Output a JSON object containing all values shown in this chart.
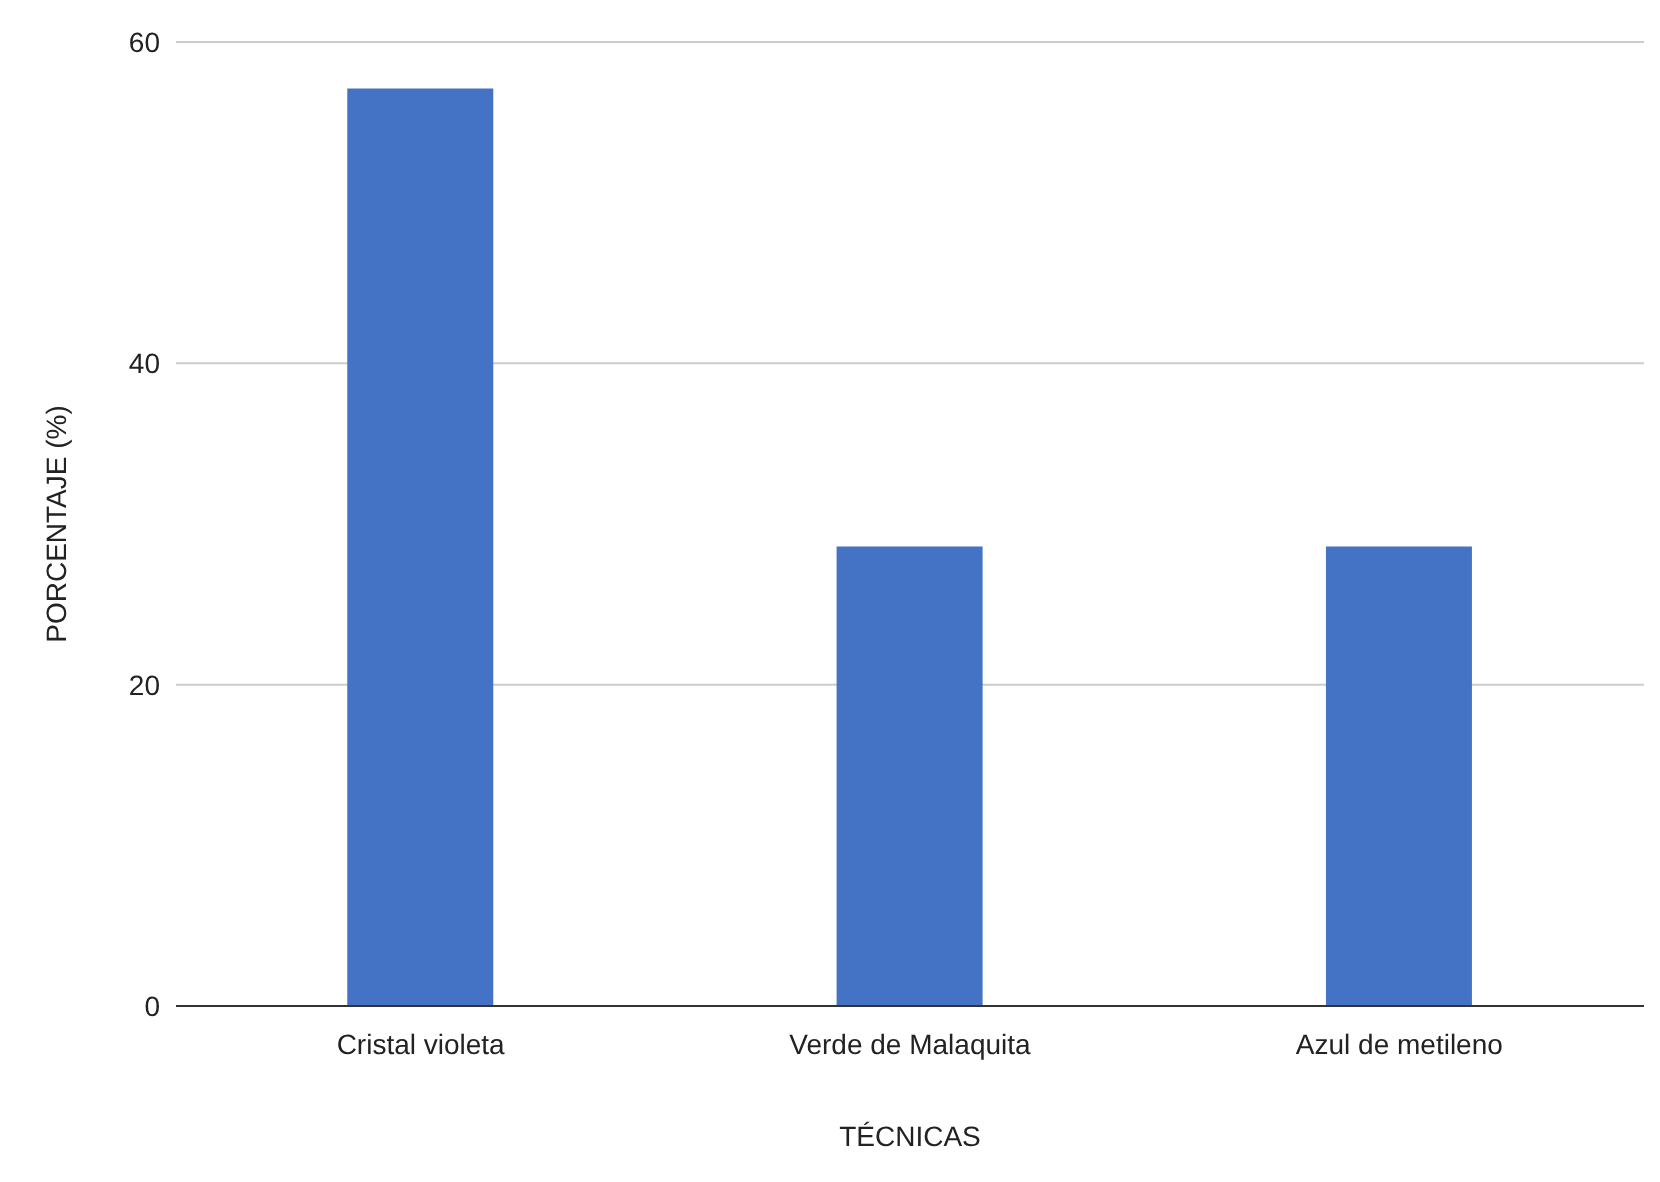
{
  "chart_data": {
    "type": "bar",
    "xlabel": "TÉCNICAS",
    "ylabel": "PORCENTAJE (%)",
    "categories": [
      "Cristal violeta",
      "Verde de Malaquita",
      "Azul de metileno"
    ],
    "values": [
      57.1,
      28.6,
      28.6
    ],
    "color": "#4472c4",
    "ylim": [
      0,
      60
    ],
    "yticks": [
      0,
      20,
      40,
      60
    ],
    "grid": "y"
  }
}
